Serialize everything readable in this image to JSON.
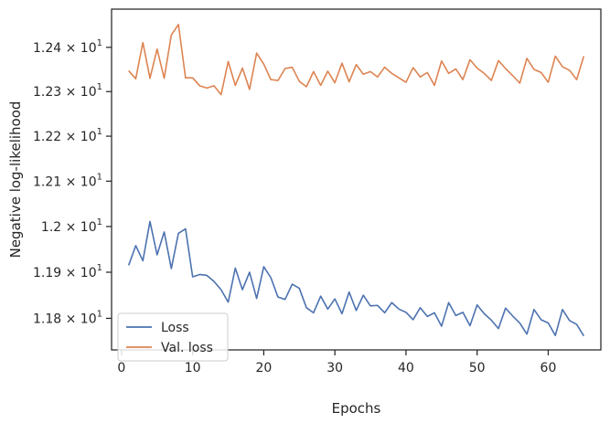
{
  "chart_data": {
    "type": "line",
    "xlabel": "Epochs",
    "ylabel": "Negative log-likelihood",
    "xlim": [
      -1.4,
      67.4
    ],
    "ylim": [
      11.732,
      12.487
    ],
    "y_scale": "log",
    "grid": false,
    "legend_position": "lower-left",
    "x_ticks": [
      0,
      10,
      20,
      30,
      40,
      50,
      60
    ],
    "x_tick_labels": [
      "0",
      "10",
      "20",
      "30",
      "40",
      "50",
      "60"
    ],
    "y_ticks": [
      11.8,
      11.9,
      12.0,
      12.1,
      12.2,
      12.3,
      12.4
    ],
    "y_tick_labels": [
      {
        "mantissa": "1.18",
        "exponent": "1"
      },
      {
        "mantissa": "1.19",
        "exponent": "1"
      },
      {
        "mantissa": "1.2",
        "exponent": "1"
      },
      {
        "mantissa": "1.21",
        "exponent": "1"
      },
      {
        "mantissa": "1.22",
        "exponent": "1"
      },
      {
        "mantissa": "1.23",
        "exponent": "1"
      },
      {
        "mantissa": "1.24",
        "exponent": "1"
      }
    ],
    "x": [
      1,
      2,
      3,
      4,
      5,
      6,
      7,
      8,
      9,
      10,
      11,
      12,
      13,
      14,
      15,
      16,
      17,
      18,
      19,
      20,
      21,
      22,
      23,
      24,
      25,
      26,
      27,
      28,
      29,
      30,
      31,
      32,
      33,
      34,
      35,
      36,
      37,
      38,
      39,
      40,
      41,
      42,
      43,
      44,
      45,
      46,
      47,
      48,
      49,
      50,
      51,
      52,
      53,
      54,
      55,
      56,
      57,
      58,
      59,
      60,
      61,
      62,
      63,
      64,
      65
    ],
    "series": [
      {
        "name": "Loss",
        "color": "#4c72b0",
        "values": [
          11.915,
          11.958,
          11.925,
          12.011,
          11.938,
          11.988,
          11.908,
          11.985,
          11.995,
          11.89,
          11.895,
          11.893,
          11.88,
          11.862,
          11.835,
          11.909,
          11.862,
          11.9,
          11.843,
          11.912,
          11.888,
          11.846,
          11.841,
          11.874,
          11.865,
          11.823,
          11.812,
          11.848,
          11.82,
          11.842,
          11.81,
          11.857,
          11.817,
          11.85,
          11.827,
          11.828,
          11.812,
          11.834,
          11.82,
          11.813,
          11.797,
          11.823,
          11.804,
          11.812,
          11.783,
          11.834,
          11.806,
          11.813,
          11.784,
          11.829,
          11.81,
          11.796,
          11.778,
          11.822,
          11.805,
          11.79,
          11.766,
          11.819,
          11.797,
          11.79,
          11.763,
          11.819,
          11.795,
          11.787,
          11.762
        ]
      },
      {
        "name": "Val. loss",
        "color": "#dd8452",
        "values": [
          12.347,
          12.329,
          12.411,
          12.33,
          12.396,
          12.33,
          12.428,
          12.452,
          12.331,
          12.331,
          12.313,
          12.308,
          12.313,
          12.293,
          12.368,
          12.314,
          12.353,
          12.305,
          12.387,
          12.362,
          12.327,
          12.325,
          12.352,
          12.355,
          12.323,
          12.311,
          12.345,
          12.314,
          12.346,
          12.32,
          12.364,
          12.322,
          12.361,
          12.339,
          12.345,
          12.333,
          12.355,
          12.341,
          12.331,
          12.321,
          12.354,
          12.333,
          12.343,
          12.314,
          12.369,
          12.341,
          12.351,
          12.327,
          12.372,
          12.353,
          12.341,
          12.325,
          12.37,
          12.352,
          12.336,
          12.319,
          12.375,
          12.35,
          12.343,
          12.321,
          12.38,
          12.356,
          12.348,
          12.327,
          12.38
        ]
      }
    ]
  }
}
